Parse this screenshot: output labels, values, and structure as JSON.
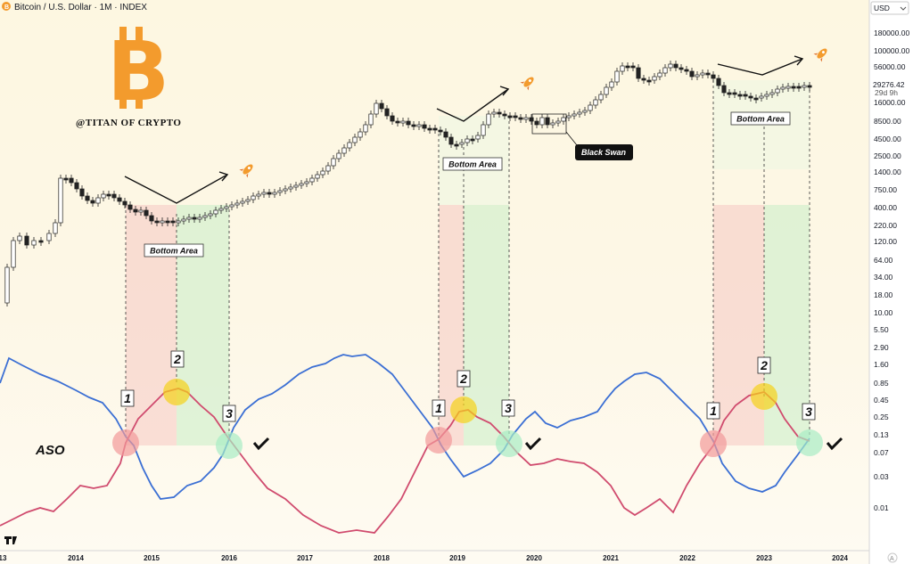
{
  "header": {
    "title": "Bitcoin / U.S. Dollar · 1M · INDEX",
    "currency": "USD",
    "brand": "@TITAN OF CRYPTO",
    "price_tag": "29276.42",
    "countdown": "29d 9h"
  },
  "annotations": {
    "bottom_area": "Bottom Area",
    "black_swan": "Black Swan",
    "aso_label": "ASO",
    "markers": [
      "1",
      "2",
      "3"
    ]
  },
  "colors": {
    "aso_bull": "#3b6fd4",
    "aso_bear": "#d04b6e",
    "zone_red": "#f6c9c3",
    "zone_green": "#cdeec9",
    "dot_yellow": "#f5d21a",
    "bitcoin_orange": "#f39b2d"
  },
  "chart_data": [
    {
      "type": "candlestick",
      "title": "Bitcoin / U.S. Dollar · 1M · INDEX",
      "scale": "log",
      "y_ticks": [
        "180000.00",
        "100000.00",
        "56000.00",
        "16000.00",
        "8500.00",
        "4500.00",
        "2500.00",
        "1400.00",
        "750.00",
        "400.00",
        "220.00",
        "120.00",
        "64.00",
        "34.00",
        "18.00",
        "10.00",
        "5.50",
        "2.90",
        "1.60",
        "0.85",
        "0.45",
        "0.25",
        "0.13",
        "0.07",
        "0.03",
        "0.01"
      ],
      "x_ticks": [
        "13",
        "2014",
        "2015",
        "2016",
        "2017",
        "2018",
        "2019",
        "2020",
        "2021",
        "2022",
        "2023",
        "2024"
      ],
      "last_price": 29276.42,
      "series_approx_close": [
        {
          "date": "2013-03",
          "close": 90
        },
        {
          "date": "2013-11",
          "close": 1100
        },
        {
          "date": "2014-06",
          "close": 640
        },
        {
          "date": "2015-01",
          "close": 220
        },
        {
          "date": "2015-06",
          "close": 260
        },
        {
          "date": "2016-06",
          "close": 670
        },
        {
          "date": "2017-12",
          "close": 14000
        },
        {
          "date": "2018-12",
          "close": 3700
        },
        {
          "date": "2019-06",
          "close": 10800
        },
        {
          "date": "2020-03",
          "close": 6400
        },
        {
          "date": "2021-04",
          "close": 57000
        },
        {
          "date": "2021-11",
          "close": 57000
        },
        {
          "date": "2022-11",
          "close": 17000
        },
        {
          "date": "2023-07",
          "close": 29276.42
        }
      ]
    },
    {
      "type": "line",
      "title": "",
      "series": [
        {
          "values_hint": "bullish oscillator component"
        },
        {
          "values_hint": "bearish oscillator component"
        }
      ]
    }
  ]
}
